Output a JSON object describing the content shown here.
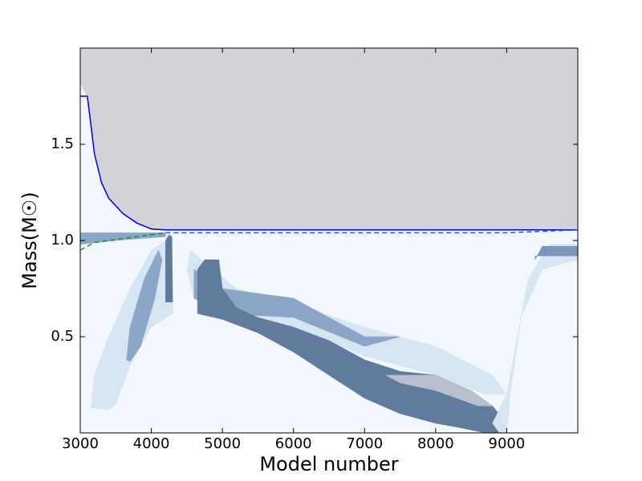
{
  "chart_data": {
    "type": "kippenhahn",
    "x_label": "Model number",
    "y_label": "Mass(M☉)",
    "xlim": [
      3000,
      10000
    ],
    "ylim": [
      0,
      2.0
    ],
    "xticks": [
      3000,
      4000,
      5000,
      6000,
      7000,
      8000,
      9000
    ],
    "yticks": [
      {
        "value": 0.5,
        "label": "0.5"
      },
      {
        "value": 1.0,
        "label": "1.0"
      },
      {
        "value": 1.5,
        "label": "1.5"
      }
    ],
    "background": "#f1f7fc",
    "regions": [
      {
        "color": "#d1d3d9",
        "x": [
          3000,
          3000,
          10000,
          10000,
          5000,
          4200,
          4000,
          3800,
          3600,
          3400,
          3300,
          3200,
          3150,
          3100
        ],
        "y": [
          1.82,
          2.0,
          2.0,
          1.055,
          1.055,
          1.055,
          1.06,
          1.09,
          1.14,
          1.22,
          1.3,
          1.45,
          1.6,
          1.75
        ]
      },
      {
        "color": "#d5e5f1",
        "x": [
          3150,
          3200,
          3400,
          3700,
          4000,
          4200,
          4300,
          4300,
          4000,
          3700,
          3500,
          3400
        ],
        "y": [
          0.13,
          0.3,
          0.5,
          0.75,
          0.95,
          1.0,
          0.8,
          0.62,
          0.55,
          0.35,
          0.15,
          0.12
        ]
      },
      {
        "color": "#8aa6c8",
        "x": [
          3650,
          3700,
          3900,
          4100,
          4150,
          4050,
          3850,
          3700
        ],
        "y": [
          0.38,
          0.55,
          0.8,
          0.95,
          0.9,
          0.7,
          0.45,
          0.37
        ]
      },
      {
        "color": "#8aa6c8",
        "x": [
          3000,
          3000,
          4200,
          4200,
          3500
        ],
        "y": [
          0.98,
          1.04,
          1.04,
          1.02,
          1.0
        ]
      },
      {
        "color": "#d5e5f1",
        "x": [
          4550,
          4700,
          5200,
          6000,
          7000,
          8000,
          8800,
          9000,
          8700,
          8000,
          7000,
          6000,
          5000,
          4600,
          4500
        ],
        "y": [
          0.95,
          0.9,
          0.75,
          0.67,
          0.55,
          0.45,
          0.3,
          0.2,
          0.2,
          0.3,
          0.4,
          0.55,
          0.65,
          0.7,
          0.85
        ]
      },
      {
        "color": "#8ba5c7",
        "x": [
          4600,
          5000,
          6000,
          6500,
          7000,
          7500,
          7000,
          6000,
          5000,
          4600
        ],
        "y": [
          0.85,
          0.75,
          0.7,
          0.6,
          0.5,
          0.5,
          0.45,
          0.6,
          0.62,
          0.7
        ]
      },
      {
        "color": "#617b9f",
        "x": [
          4650,
          4650,
          4750,
          4950,
          5000,
          5200,
          5500,
          6000,
          6500,
          7000,
          7500,
          8000,
          8500,
          8800,
          9000,
          9000,
          8700,
          8300,
          8000,
          7500,
          7000,
          6500,
          6000,
          5500,
          5000
        ],
        "y": [
          0.62,
          0.85,
          0.9,
          0.9,
          0.75,
          0.65,
          0.6,
          0.55,
          0.48,
          0.38,
          0.32,
          0.3,
          0.22,
          0.14,
          0.05,
          0.0,
          0.0,
          0.03,
          0.05,
          0.1,
          0.18,
          0.3,
          0.42,
          0.52,
          0.59
        ]
      },
      {
        "color": "#617b9f",
        "x": [
          4200,
          4200,
          4250,
          4290,
          4300
        ],
        "y": [
          0.68,
          1.0,
          1.03,
          1.02,
          0.68
        ]
      },
      {
        "color": "#b7c0cc",
        "x": [
          7300,
          8000,
          8500,
          8800,
          8600,
          8000,
          7500
        ],
        "y": [
          0.3,
          0.3,
          0.22,
          0.14,
          0.14,
          0.22,
          0.26
        ]
      },
      {
        "color": "#d5e5f1",
        "x": [
          8800,
          9000,
          9100,
          9300,
          9600,
          10000,
          10000,
          9500,
          9200,
          9050,
          9000,
          8900
        ],
        "y": [
          0.05,
          0.2,
          0.4,
          0.8,
          0.98,
          0.98,
          0.9,
          0.85,
          0.6,
          0.2,
          0.0,
          0.0
        ]
      },
      {
        "color": "#7b96bb",
        "x": [
          9400,
          9500,
          10000,
          10000,
          9400
        ],
        "y": [
          0.9,
          0.97,
          0.97,
          0.92,
          0.92
        ]
      }
    ],
    "series": [
      {
        "color": "#0000dd",
        "dashed": false,
        "x": [
          3000,
          3100,
          3150,
          3200,
          3300,
          3400,
          3600,
          3800,
          4000,
          4200,
          5000,
          10000
        ],
        "values": [
          1.75,
          1.75,
          1.6,
          1.45,
          1.3,
          1.22,
          1.14,
          1.09,
          1.06,
          1.055,
          1.055,
          1.055
        ]
      },
      {
        "color": "#228b22",
        "dashed": true,
        "x": [
          3000,
          3200,
          3600,
          4000,
          4200
        ],
        "values": [
          0.95,
          0.99,
          1.01,
          1.03,
          1.04
        ]
      },
      {
        "color": "#1f5fbf",
        "dashed": true,
        "x": [
          4200,
          9000,
          10000
        ],
        "values": [
          1.04,
          1.04,
          1.055
        ]
      }
    ]
  }
}
